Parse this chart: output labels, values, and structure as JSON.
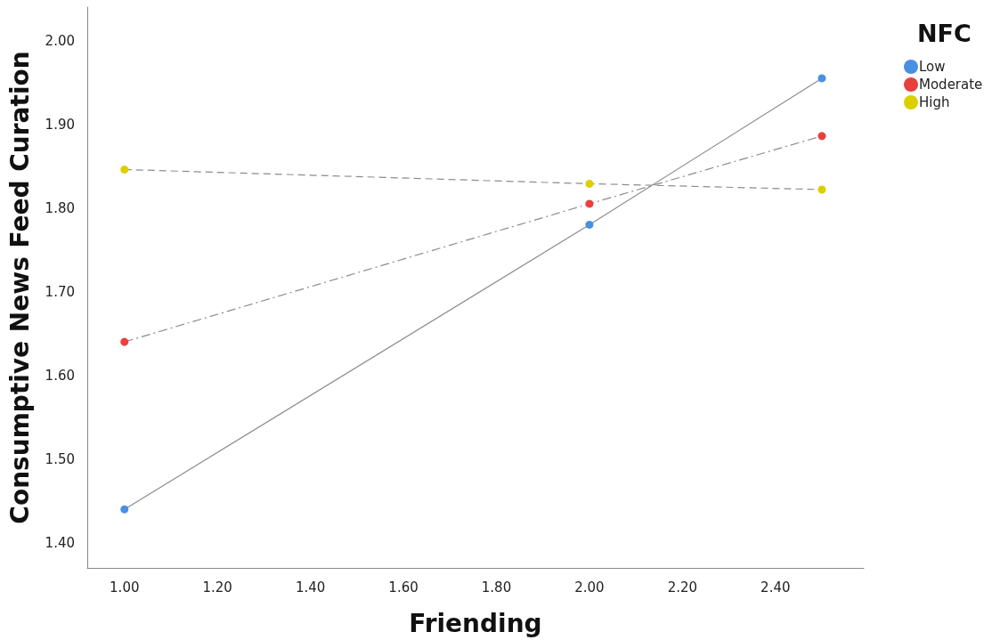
{
  "chart_data": {
    "type": "line",
    "xlabel": "Friending",
    "ylabel": "Consumptive News Feed Curation",
    "legend_title": "NFC",
    "x": [
      1.0,
      2.0,
      2.5
    ],
    "series": [
      {
        "name": "Low",
        "color": "#4a90e2",
        "values": [
          1.44,
          1.78,
          1.955
        ],
        "line_style": "solid"
      },
      {
        "name": "Moderate",
        "color": "#e8413c",
        "values": [
          1.64,
          1.805,
          1.886
        ],
        "line_style": "dashdot"
      },
      {
        "name": "High",
        "color": "#dccf00",
        "values": [
          1.846,
          1.829,
          1.822
        ],
        "line_style": "dashed"
      }
    ],
    "xlim": [
      0.92,
      2.59
    ],
    "xticks": [
      {
        "value": 1.0,
        "label": "1.00"
      },
      {
        "value": 1.2,
        "label": "1.20"
      },
      {
        "value": 1.4,
        "label": "1.40"
      },
      {
        "value": 1.6,
        "label": "1.60"
      },
      {
        "value": 1.8,
        "label": "1.80"
      },
      {
        "value": 2.0,
        "label": "2.00"
      },
      {
        "value": 2.2,
        "label": "2.20"
      },
      {
        "value": 2.4,
        "label": "2.40"
      }
    ],
    "ylim": [
      1.37,
      2.04
    ],
    "yticks": [
      {
        "value": 1.4,
        "label": "1.40"
      },
      {
        "value": 1.5,
        "label": "1.50"
      },
      {
        "value": 1.6,
        "label": "1.60"
      },
      {
        "value": 1.7,
        "label": "1.70"
      },
      {
        "value": 1.8,
        "label": "1.80"
      },
      {
        "value": 1.9,
        "label": "1.90"
      },
      {
        "value": 2.0,
        "label": "2.00"
      }
    ],
    "grid": false,
    "legend": "top right",
    "marker": "circle"
  }
}
